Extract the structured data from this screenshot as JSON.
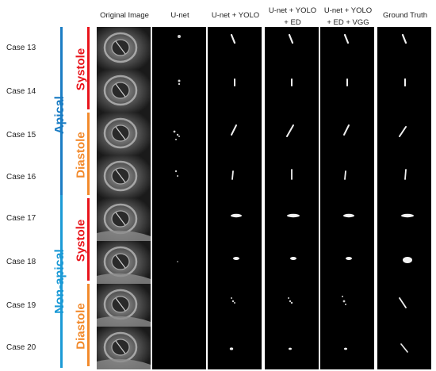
{
  "columns": [
    "Original Image",
    "U-net",
    "U-net + YOLO",
    "U-net + YOLO\n+ ED",
    "U-net + YOLO\n+ ED + VGG",
    "Ground Truth"
  ],
  "groups": [
    {
      "label": "Apical",
      "color": "#1b7dc4"
    },
    {
      "label": "Non-apical",
      "color": "#1b9ad6"
    }
  ],
  "phases": [
    {
      "label": "Systole",
      "color": "#e8141b"
    },
    {
      "label": "Diastole",
      "color": "#f28a2c"
    },
    {
      "label": "Systole",
      "color": "#e8141b"
    },
    {
      "label": "Diastole",
      "color": "#f28a2c"
    }
  ],
  "cases": [
    "Case 13",
    "Case 14",
    "Case 15",
    "Case 16",
    "Case 17",
    "Case 18",
    "Case 19",
    "Case 20"
  ]
}
